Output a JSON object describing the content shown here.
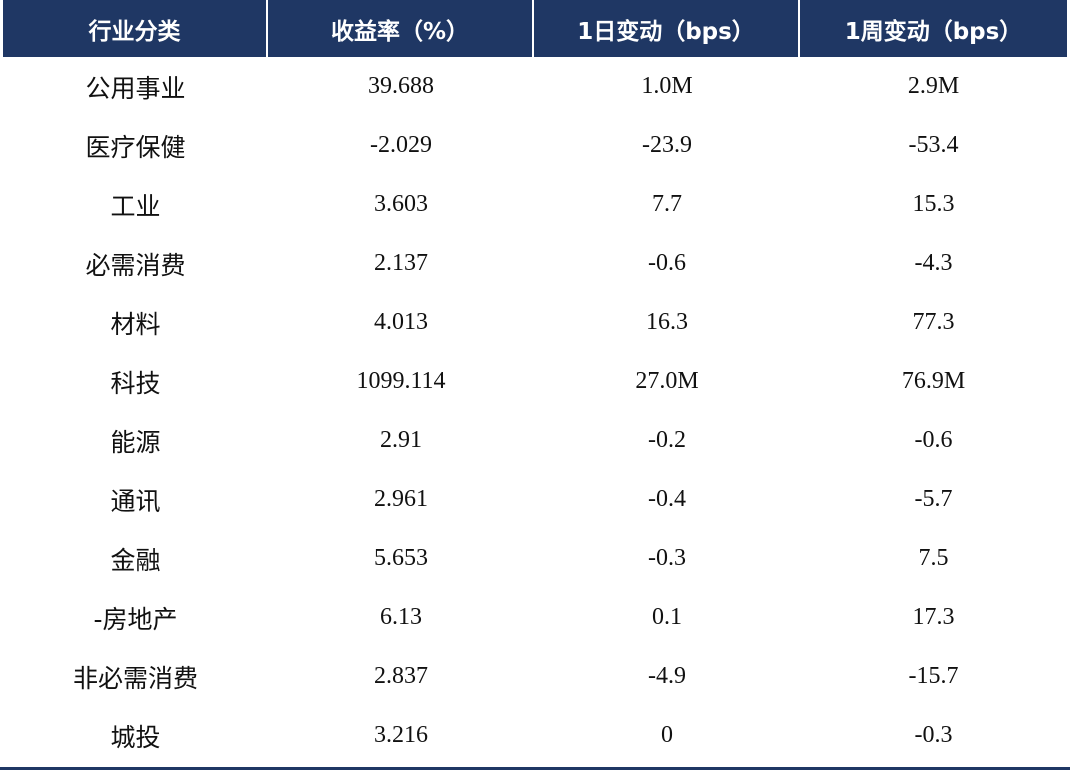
{
  "table": {
    "headers": [
      "行业分类",
      "收益率（%）",
      "1日变动（bps）",
      "1周变动（bps）"
    ],
    "rows": [
      [
        "公用事业",
        "39.688",
        "1.0M",
        "2.9M"
      ],
      [
        "医疗保健",
        "-2.029",
        "-23.9",
        "-53.4"
      ],
      [
        "工业",
        "3.603",
        "7.7",
        "15.3"
      ],
      [
        "必需消费",
        "2.137",
        "-0.6",
        "-4.3"
      ],
      [
        "材料",
        "4.013",
        "16.3",
        "77.3"
      ],
      [
        "科技",
        "1099.114",
        "27.0M",
        "76.9M"
      ],
      [
        "能源",
        "2.91",
        "-0.2",
        "-0.6"
      ],
      [
        "通讯",
        "2.961",
        "-0.4",
        "-5.7"
      ],
      [
        "金融",
        "5.653",
        "-0.3",
        "7.5"
      ],
      [
        "-房地产",
        "6.13",
        "0.1",
        "17.3"
      ],
      [
        "非必需消费",
        "2.837",
        "-4.9",
        "-15.7"
      ],
      [
        "城投",
        "3.216",
        "0",
        "-0.3"
      ]
    ]
  },
  "colors": {
    "header_background": "#1f3764",
    "header_text": "#ffffff",
    "body_text": "#111111",
    "bottom_rule": "#1f3764"
  }
}
